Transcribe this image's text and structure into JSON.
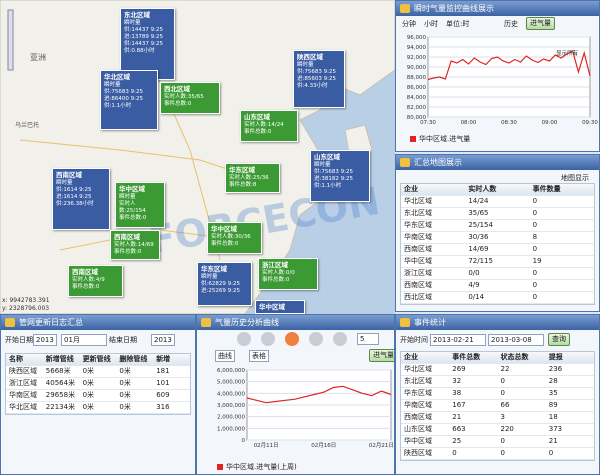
{
  "map": {
    "labels": [
      "亚洲",
      "乌兰巴托"
    ],
    "coords": [
      "x: 9942783.391",
      "y: 2328796.003"
    ],
    "watermark": "FORCECON",
    "popups": [
      {
        "title": "东北区域",
        "lines": [
          "瞬时量",
          "供:14437 9:25",
          "进:13789 9:25",
          "供:14437 9:25",
          "供:0.88小时"
        ]
      },
      {
        "title": "华北区域",
        "lines": [
          "瞬时量",
          "供:75683 9:25",
          "进:86400 9:25",
          "供:1.1小时"
        ]
      },
      {
        "title": "陕西区域",
        "lines": [
          "瞬时量",
          "供:75683 9:25",
          "进:85603 9:25",
          "供:4.33小时"
        ]
      },
      {
        "title": "西北区域",
        "lines": [
          "实时人数:35/65",
          "事件总数:0"
        ]
      },
      {
        "title": "山东区域",
        "lines": [
          "实时人数:14/24",
          "事件总数:0"
        ]
      },
      {
        "title": "山东区域",
        "lines": [
          "瞬时量",
          "供:75683 9:25",
          "进:38182 9:25",
          "供:1.1小时"
        ]
      },
      {
        "title": "西南区域",
        "lines": [
          "瞬时量",
          "供:1614 9:25",
          "进:1614 9:25",
          "供:236.38小时"
        ]
      },
      {
        "title": "华中区域",
        "lines": [
          "瞬时量",
          "实时人数:25/154",
          "事件总数:0"
        ]
      },
      {
        "title": "华东区域",
        "lines": [
          "实时人数:25/36",
          "事件总数:8"
        ]
      },
      {
        "title": "西南区域",
        "lines": [
          "实时人数:14/69",
          "事件总数:0"
        ]
      },
      {
        "title": "华中区域",
        "lines": [
          "实时人数:30/36",
          "事件总数:0"
        ]
      },
      {
        "title": "西南区域",
        "lines": [
          "实时人数:4/9",
          "事件总数:0"
        ]
      },
      {
        "title": "浙江区域",
        "lines": [
          "实时人数:0/0",
          "事件总数:0"
        ]
      },
      {
        "title": "华东区域",
        "lines": [
          "瞬时量",
          "供:62829 9:25",
          "进:25269 9:25"
        ]
      },
      {
        "title": "华中区域",
        "lines": []
      }
    ]
  },
  "monitor": {
    "title": "瞬时气量监控曲线展示",
    "options": [
      "分钟",
      "小时",
      "单位:时"
    ],
    "history": "历史",
    "button": "进气量",
    "note": "显示所有",
    "chart": {
      "type": "line",
      "categories": [
        "07:30",
        null,
        null,
        null,
        null,
        null,
        null,
        "08:00",
        null,
        null,
        null,
        null,
        null,
        null,
        "08:30",
        null,
        null,
        null,
        null,
        null,
        null,
        "09:00",
        null,
        null,
        null,
        null,
        null,
        null,
        "09:30"
      ],
      "series": [
        {
          "name": "华中区域.进气量",
          "color": "#e02424",
          "values": [
            87500,
            87800,
            88000,
            87600,
            91200,
            90800,
            91500,
            90600,
            91800,
            91000,
            90500,
            91700,
            92000,
            91200,
            90800,
            91500,
            91000,
            92200,
            91400,
            90900,
            91600,
            91200,
            92400,
            91800,
            92600,
            93200,
            89000,
            92800,
            88200
          ]
        }
      ],
      "ylim": [
        80000,
        96000
      ],
      "yticks": [
        {
          "value": 80000,
          "label": "80,000"
        },
        {
          "value": 82000,
          "label": "82,000"
        },
        {
          "value": 84000,
          "label": "84,000"
        },
        {
          "value": 86000,
          "label": "86,000"
        },
        {
          "value": 88000,
          "label": "88,000"
        },
        {
          "value": 90000,
          "label": "90,000"
        },
        {
          "value": 92000,
          "label": "92,000"
        },
        {
          "value": 94000,
          "label": "94,000"
        },
        {
          "value": 96000,
          "label": "96,000"
        }
      ],
      "grid": true
    }
  },
  "summary": {
    "title": "汇总地图展示",
    "toggle": "地图显示",
    "table": {
      "headers": [
        "企业",
        "实时人数",
        "事件数量"
      ],
      "rows": [
        [
          "华北区域",
          "14/24",
          "0"
        ],
        [
          "东北区域",
          "35/65",
          "0"
        ],
        [
          "华东区域",
          "25/154",
          "0"
        ],
        [
          "华南区域",
          "30/36",
          "8"
        ],
        [
          "西南区域",
          "14/69",
          "0"
        ],
        [
          "华中区域",
          "72/115",
          "19"
        ],
        [
          "浙江区域",
          "0/0",
          "0"
        ],
        [
          "西南区域",
          "4/9",
          "0"
        ],
        [
          "西北区域",
          "0/14",
          "0"
        ]
      ]
    }
  },
  "log": {
    "title": "管网更新日志汇总",
    "start_label": "开始日期",
    "start_year": "2013",
    "start_month": "01月",
    "end_label": "结束日期",
    "end_year": "2013",
    "table": {
      "headers": [
        "名称",
        "新增管线",
        "更新管线",
        "删除管线",
        "新增"
      ],
      "rows": [
        [
          "陕西区域",
          "5668米",
          "0米",
          "0米",
          "181"
        ],
        [
          "浙江区域",
          "40564米",
          "0米",
          "0米",
          "101"
        ],
        [
          "华南区域",
          "29658米",
          "0米",
          "0米",
          "609"
        ],
        [
          "华北区域",
          "22134米",
          "0米",
          "0米",
          "316"
        ]
      ]
    }
  },
  "history": {
    "title": "气量历史分析曲线",
    "tabs": [
      "曲线",
      "表格"
    ],
    "button": "进气量",
    "select": "5",
    "chart": {
      "type": "line",
      "categories": [
        null,
        null,
        "02月11日",
        null,
        null,
        null,
        null,
        null,
        "02月16日",
        null,
        null,
        null,
        null,
        null,
        "02月21日",
        null
      ],
      "series": [
        {
          "name": "华中区域.进气量(上周)",
          "color": "#e02424",
          "values": [
            3600000,
            3400000,
            3200000,
            3300000,
            3400000,
            3500000,
            3700000,
            3900000,
            4100000,
            4500000,
            4600000,
            4300000,
            4000000,
            3800000,
            4200000,
            3900000
          ]
        }
      ],
      "ylim": [
        0,
        6000000
      ],
      "yticks": [
        0,
        {
          "value": 1000000,
          "label": "1,000,000"
        },
        {
          "value": 2000000,
          "label": "2,000,000"
        },
        {
          "value": 3000000,
          "label": "3,000,000"
        },
        {
          "value": 4000000,
          "label": "4,000,000"
        },
        {
          "value": 5000000,
          "label": "5,000,000"
        },
        {
          "value": 6000000,
          "label": "6,000,000"
        }
      ],
      "grid": true
    }
  },
  "events": {
    "title": "事件统计",
    "start_label": "开始时间",
    "start": "2013-02-21",
    "end": "2013-03-08",
    "button": "查询",
    "table": {
      "headers": [
        "企业",
        "事件总数",
        "状态总数",
        "提报"
      ],
      "rows": [
        [
          "华北区域",
          "269",
          "22",
          "236"
        ],
        [
          "东北区域",
          "32",
          "0",
          "28"
        ],
        [
          "华东区域",
          "38",
          "0",
          "35"
        ],
        [
          "华南区域",
          "167",
          "66",
          "89"
        ],
        [
          "西南区域",
          "21",
          "3",
          "18"
        ],
        [
          "山东区域",
          "663",
          "220",
          "373"
        ],
        [
          "华中区域",
          "25",
          "0",
          "21"
        ],
        [
          "陕西区域",
          "0",
          "0",
          "0"
        ]
      ]
    }
  }
}
